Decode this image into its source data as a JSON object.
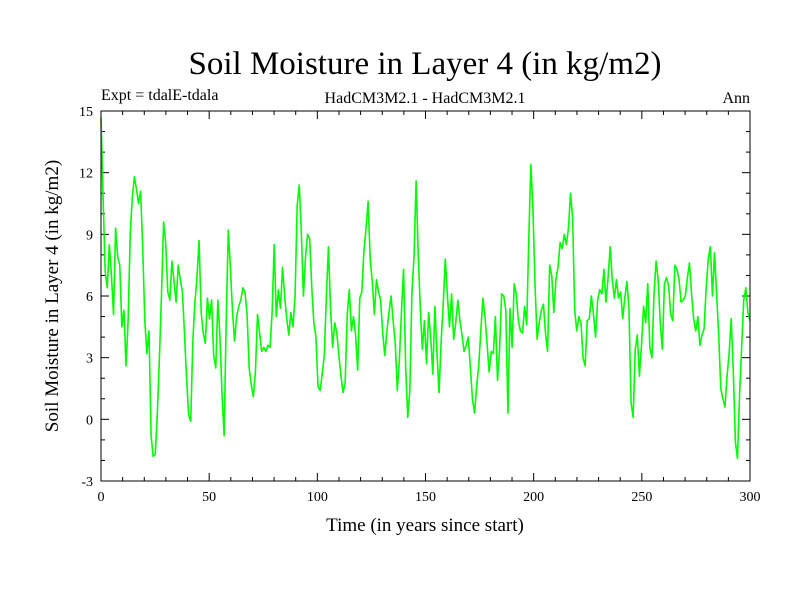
{
  "chart_data": {
    "type": "line",
    "title": "Soil Moisture in Layer 4 (in kg/m2)",
    "subtitle_left": "Expt = tdalE-tdala",
    "subtitle_center": "HadCM3M2.1 - HadCM3M2.1",
    "subtitle_right": "Ann",
    "xlabel": "Time (in years since start)",
    "ylabel": "Soil Moisture in Layer 4 (in kg/m2)",
    "xlim": [
      0,
      300
    ],
    "ylim": [
      -3,
      15
    ],
    "x_ticks": [
      0,
      50,
      100,
      150,
      200,
      250,
      300
    ],
    "x_tick_labels": [
      "0",
      "50",
      "100",
      "150",
      "200",
      "250",
      "300"
    ],
    "y_ticks": [
      -3,
      0,
      3,
      6,
      9,
      12,
      15
    ],
    "y_tick_labels": [
      "-3",
      "0",
      "3",
      "6",
      "9",
      "12",
      "15"
    ],
    "grid": false,
    "series": [
      {
        "name": "Soil Moisture Layer 4",
        "color": "#00ff00",
        "values": [
          14.7,
          10.8,
          7.2,
          6.4,
          8.5,
          7.0,
          5.1,
          9.3,
          7.9,
          7.5,
          4.5,
          5.3,
          2.6,
          4.8,
          9.0,
          10.8,
          11.8,
          11.2,
          10.5,
          11.1,
          8.3,
          4.8,
          3.2,
          4.3,
          -0.8,
          -1.8,
          -1.7,
          0.3,
          3.0,
          6.1,
          9.6,
          8.6,
          6.2,
          5.8,
          7.7,
          6.7,
          5.7,
          7.5,
          6.8,
          6.2,
          4.2,
          2.0,
          0.2,
          -0.1,
          3.8,
          5.7,
          6.9,
          8.7,
          5.2,
          4.2,
          3.7,
          5.9,
          4.9,
          5.8,
          3.1,
          2.5,
          5.8,
          4.0,
          1.2,
          -0.8,
          4.8,
          9.2,
          7.4,
          5.3,
          3.8,
          5.0,
          5.5,
          5.8,
          6.4,
          6.2,
          5.1,
          2.5,
          1.7,
          1.1,
          2.3,
          5.1,
          4.2,
          3.3,
          3.5,
          3.3,
          3.6,
          3.5,
          5.2,
          8.5,
          5.0,
          6.3,
          5.4,
          7.4,
          6.0,
          4.9,
          4.1,
          5.2,
          4.5,
          6.0,
          10.4,
          11.4,
          9.1,
          6.0,
          7.9,
          9.0,
          8.8,
          6.4,
          4.7,
          4.0,
          1.6,
          1.4,
          2.2,
          3.1,
          6.0,
          8.4,
          5.4,
          3.5,
          4.7,
          4.2,
          3.1,
          2.1,
          1.3,
          1.8,
          5.1,
          6.3,
          4.3,
          5.0,
          4.1,
          2.4,
          5.9,
          6.2,
          8.2,
          9.3,
          10.6,
          7.8,
          6.7,
          5.1,
          6.8,
          6.2,
          5.8,
          4.2,
          3.1,
          4.3,
          5.2,
          6.0,
          4.8,
          3.7,
          1.4,
          2.9,
          5.3,
          7.3,
          2.5,
          0.1,
          1.4,
          6.2,
          7.9,
          11.6,
          8.1,
          5.4,
          3.4,
          4.8,
          2.7,
          5.2,
          4.0,
          2.2,
          5.5,
          3.2,
          1.3,
          3.8,
          5.6,
          7.8,
          6.0,
          4.5,
          6.1,
          3.9,
          4.7,
          5.8,
          4.8,
          4.1,
          3.3,
          3.6,
          4.0,
          2.5,
          1.0,
          0.3,
          1.6,
          2.6,
          4.3,
          5.9,
          5.0,
          3.7,
          2.3,
          3.3,
          3.2,
          5.0,
          1.9,
          3.4,
          6.1,
          6.0,
          5.3,
          0.3,
          5.4,
          3.5,
          6.6,
          6.1,
          4.8,
          4.3,
          4.2,
          5.5,
          4.6,
          8.8,
          12.4,
          10.2,
          6.5,
          3.9,
          4.7,
          5.3,
          5.6,
          4.2,
          3.3,
          7.5,
          7.0,
          5.2,
          6.8,
          7.4,
          8.6,
          8.3,
          9.0,
          8.5,
          9.3,
          11.0,
          9.8,
          5.3,
          4.3,
          5.0,
          4.7,
          3.0,
          2.6,
          4.8,
          4.9,
          6.0,
          5.1,
          4.0,
          5.8,
          6.3,
          6.1,
          7.3,
          5.7,
          6.9,
          8.4,
          6.8,
          5.9,
          6.8,
          5.9,
          6.2,
          4.9,
          5.9,
          6.7,
          5.4,
          0.8,
          0.1,
          3.4,
          4.1,
          2.1,
          3.6,
          5.5,
          4.7,
          6.6,
          3.5,
          3.0,
          6.1,
          7.7,
          6.8,
          4.7,
          3.4,
          6.6,
          6.9,
          6.5,
          5.1,
          4.8,
          7.5,
          7.3,
          6.8,
          5.7,
          5.8,
          6.0,
          6.9,
          7.6,
          6.1,
          4.9,
          4.3,
          5.0,
          3.6,
          4.1,
          4.4,
          6.4,
          7.8,
          8.4,
          6.0,
          8.1,
          6.1,
          4.1,
          1.5,
          1.0,
          0.6,
          2.1,
          3.2,
          4.9,
          2.3,
          -1.1,
          -1.9,
          1.2,
          3.5,
          5.8,
          6.4,
          5.2,
          4.8
        ]
      }
    ]
  }
}
